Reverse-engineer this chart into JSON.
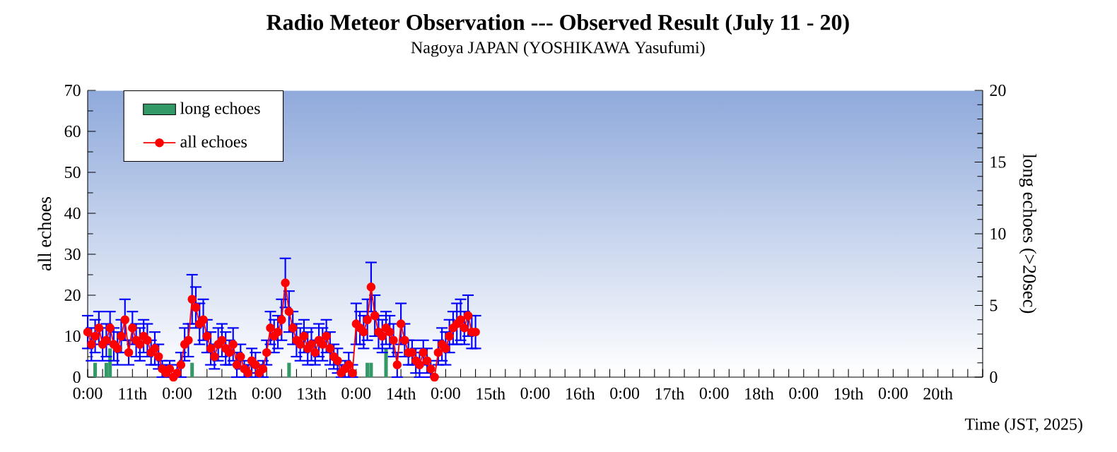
{
  "chart_data": {
    "type": "line",
    "title": "Radio Meteor Observation  ---  Observed Result (July 11 - 20)",
    "subtitle": "Nagoya JAPAN (YOSHIKAWA Yasufumi)",
    "xlabel": "Time (JST, 2025)",
    "ylabel": "all echoes",
    "y2label": "long echoes (>20sec)",
    "xlim": [
      "2025-07-11T00:00",
      "2025-07-21T00:00"
    ],
    "ylim": [
      0,
      70
    ],
    "y2lim": [
      0,
      20
    ],
    "yticks": [
      0,
      10,
      20,
      30,
      40,
      50,
      60,
      70
    ],
    "y2ticks": [
      0,
      5,
      10,
      15,
      20
    ],
    "xticks": [
      {
        "value": "2025-07-11T00:00",
        "label": "0:00"
      },
      {
        "value": "2025-07-11T04:00",
        "label": null
      },
      {
        "value": "2025-07-11T08:00",
        "label": null
      },
      {
        "value": "2025-07-11T12:00",
        "label": "11th"
      },
      {
        "value": "2025-07-11T16:00",
        "label": null
      },
      {
        "value": "2025-07-11T20:00",
        "label": null
      },
      {
        "value": "2025-07-12T00:00",
        "label": "0:00"
      },
      {
        "value": "2025-07-12T04:00",
        "label": null
      },
      {
        "value": "2025-07-12T08:00",
        "label": null
      },
      {
        "value": "2025-07-12T12:00",
        "label": "12th"
      },
      {
        "value": "2025-07-12T16:00",
        "label": null
      },
      {
        "value": "2025-07-12T20:00",
        "label": null
      },
      {
        "value": "2025-07-13T00:00",
        "label": "0:00"
      },
      {
        "value": "2025-07-13T04:00",
        "label": null
      },
      {
        "value": "2025-07-13T08:00",
        "label": null
      },
      {
        "value": "2025-07-13T12:00",
        "label": "13th"
      },
      {
        "value": "2025-07-13T16:00",
        "label": null
      },
      {
        "value": "2025-07-13T20:00",
        "label": null
      },
      {
        "value": "2025-07-14T00:00",
        "label": "0:00"
      },
      {
        "value": "2025-07-14T04:00",
        "label": null
      },
      {
        "value": "2025-07-14T08:00",
        "label": null
      },
      {
        "value": "2025-07-14T12:00",
        "label": "14th"
      },
      {
        "value": "2025-07-14T16:00",
        "label": null
      },
      {
        "value": "2025-07-14T20:00",
        "label": null
      },
      {
        "value": "2025-07-15T00:00",
        "label": "0:00"
      },
      {
        "value": "2025-07-15T04:00",
        "label": null
      },
      {
        "value": "2025-07-15T08:00",
        "label": null
      },
      {
        "value": "2025-07-15T12:00",
        "label": "15th"
      },
      {
        "value": "2025-07-15T16:00",
        "label": null
      },
      {
        "value": "2025-07-15T20:00",
        "label": null
      },
      {
        "value": "2025-07-16T00:00",
        "label": "0:00"
      },
      {
        "value": "2025-07-16T04:00",
        "label": null
      },
      {
        "value": "2025-07-16T08:00",
        "label": null
      },
      {
        "value": "2025-07-16T12:00",
        "label": "16th"
      },
      {
        "value": "2025-07-16T16:00",
        "label": null
      },
      {
        "value": "2025-07-16T20:00",
        "label": null
      },
      {
        "value": "2025-07-17T00:00",
        "label": "0:00"
      },
      {
        "value": "2025-07-17T04:00",
        "label": null
      },
      {
        "value": "2025-07-17T08:00",
        "label": null
      },
      {
        "value": "2025-07-17T12:00",
        "label": "17th"
      },
      {
        "value": "2025-07-17T16:00",
        "label": null
      },
      {
        "value": "2025-07-17T20:00",
        "label": null
      },
      {
        "value": "2025-07-18T00:00",
        "label": "0:00"
      },
      {
        "value": "2025-07-18T04:00",
        "label": null
      },
      {
        "value": "2025-07-18T08:00",
        "label": null
      },
      {
        "value": "2025-07-18T12:00",
        "label": "18th"
      },
      {
        "value": "2025-07-18T16:00",
        "label": null
      },
      {
        "value": "2025-07-18T20:00",
        "label": null
      },
      {
        "value": "2025-07-19T00:00",
        "label": "0:00"
      },
      {
        "value": "2025-07-19T04:00",
        "label": null
      },
      {
        "value": "2025-07-19T08:00",
        "label": null
      },
      {
        "value": "2025-07-19T12:00",
        "label": "19th"
      },
      {
        "value": "2025-07-19T16:00",
        "label": null
      },
      {
        "value": "2025-07-19T20:00",
        "label": null
      },
      {
        "value": "2025-07-20T00:00",
        "label": "0:00"
      },
      {
        "value": "2025-07-20T04:00",
        "label": null
      },
      {
        "value": "2025-07-20T08:00",
        "label": null
      },
      {
        "value": "2025-07-20T12:00",
        "label": "20th"
      },
      {
        "value": "2025-07-20T16:00",
        "label": null
      },
      {
        "value": "2025-07-20T20:00",
        "label": null
      },
      {
        "value": "2025-07-21T00:00",
        "label": null
      }
    ],
    "legend": "top left",
    "marker": "circle",
    "x": [
      "2025-07-11T00:00",
      "2025-07-11T01:00",
      "2025-07-11T02:00",
      "2025-07-11T03:00",
      "2025-07-11T04:00",
      "2025-07-11T05:00",
      "2025-07-11T06:00",
      "2025-07-11T07:00",
      "2025-07-11T08:00",
      "2025-07-11T09:00",
      "2025-07-11T10:00",
      "2025-07-11T11:00",
      "2025-07-11T12:00",
      "2025-07-11T13:00",
      "2025-07-11T14:00",
      "2025-07-11T15:00",
      "2025-07-11T16:00",
      "2025-07-11T17:00",
      "2025-07-11T18:00",
      "2025-07-11T19:00",
      "2025-07-11T20:00",
      "2025-07-11T21:00",
      "2025-07-11T22:00",
      "2025-07-11T23:00",
      "2025-07-12T00:00",
      "2025-07-12T01:00",
      "2025-07-12T02:00",
      "2025-07-12T03:00",
      "2025-07-12T04:00",
      "2025-07-12T05:00",
      "2025-07-12T06:00",
      "2025-07-12T07:00",
      "2025-07-12T08:00",
      "2025-07-12T09:00",
      "2025-07-12T10:00",
      "2025-07-12T11:00",
      "2025-07-12T12:00",
      "2025-07-12T13:00",
      "2025-07-12T14:00",
      "2025-07-12T15:00",
      "2025-07-12T16:00",
      "2025-07-12T17:00",
      "2025-07-12T18:00",
      "2025-07-12T19:00",
      "2025-07-12T20:00",
      "2025-07-12T21:00",
      "2025-07-12T22:00",
      "2025-07-12T23:00",
      "2025-07-13T00:00",
      "2025-07-13T01:00",
      "2025-07-13T02:00",
      "2025-07-13T03:00",
      "2025-07-13T04:00",
      "2025-07-13T05:00",
      "2025-07-13T06:00",
      "2025-07-13T07:00",
      "2025-07-13T08:00",
      "2025-07-13T09:00",
      "2025-07-13T10:00",
      "2025-07-13T11:00",
      "2025-07-13T12:00",
      "2025-07-13T13:00",
      "2025-07-13T14:00",
      "2025-07-13T15:00",
      "2025-07-13T16:00",
      "2025-07-13T17:00",
      "2025-07-13T18:00",
      "2025-07-13T19:00",
      "2025-07-13T20:00",
      "2025-07-13T21:00",
      "2025-07-13T22:00",
      "2025-07-13T23:00",
      "2025-07-14T00:00",
      "2025-07-14T01:00",
      "2025-07-14T02:00",
      "2025-07-14T03:00",
      "2025-07-14T04:00",
      "2025-07-14T05:00",
      "2025-07-14T06:00",
      "2025-07-14T07:00",
      "2025-07-14T08:00",
      "2025-07-14T09:00",
      "2025-07-14T10:00",
      "2025-07-14T11:00",
      "2025-07-14T12:00",
      "2025-07-14T13:00",
      "2025-07-14T14:00",
      "2025-07-14T15:00",
      "2025-07-14T16:00",
      "2025-07-14T17:00",
      "2025-07-14T18:00",
      "2025-07-14T19:00",
      "2025-07-14T20:00",
      "2025-07-14T21:00",
      "2025-07-14T22:00",
      "2025-07-14T23:00",
      "2025-07-15T00:00",
      "2025-07-15T01:00",
      "2025-07-15T02:00",
      "2025-07-15T03:00",
      "2025-07-15T04:00",
      "2025-07-15T05:00",
      "2025-07-15T06:00",
      "2025-07-15T07:00",
      "2025-07-15T08:00"
    ],
    "series": [
      {
        "name": "long echoes",
        "type": "bar",
        "axis": "y2",
        "color": "#339966",
        "values": [
          0,
          0,
          1,
          0,
          0,
          1,
          2,
          0,
          0,
          0,
          0,
          0,
          0,
          0,
          0,
          0,
          0,
          0,
          0,
          0,
          0,
          0,
          0,
          0,
          0,
          0,
          0,
          0,
          1,
          0,
          0,
          0,
          0,
          0,
          0,
          0,
          0,
          0,
          0,
          0,
          0,
          0,
          0,
          0,
          0,
          0,
          0,
          0,
          0,
          0,
          0,
          0,
          0,
          0,
          1,
          0,
          0,
          0,
          0,
          0,
          0,
          0,
          0,
          0,
          0,
          0,
          0,
          0,
          0,
          0,
          0,
          0,
          0,
          0,
          0,
          1,
          1,
          0,
          0,
          0,
          2,
          0,
          0,
          0,
          0,
          0,
          0,
          0,
          0,
          0,
          0,
          0,
          0,
          0,
          0,
          0,
          0,
          0,
          0,
          0,
          0,
          0,
          0,
          0,
          0
        ]
      },
      {
        "name": "all echoes",
        "color": "#ff0000",
        "values": [
          11,
          8,
          10,
          12,
          8,
          9,
          12,
          8,
          7,
          10,
          14,
          6,
          12,
          9,
          8,
          10,
          9,
          6,
          7,
          5,
          2,
          1,
          2,
          0,
          1,
          3,
          8,
          9,
          19,
          17,
          13,
          14,
          10,
          7,
          5,
          8,
          9,
          7,
          6,
          8,
          3,
          5,
          2,
          1,
          4,
          3,
          1,
          2,
          6,
          12,
          10,
          11,
          14,
          23,
          16,
          12,
          9,
          8,
          10,
          7,
          8,
          6,
          9,
          8,
          10,
          7,
          5,
          4,
          1,
          2,
          3,
          1,
          13,
          12,
          11,
          14,
          22,
          15,
          11,
          10,
          12,
          11,
          9,
          3,
          13,
          9,
          6,
          6,
          4,
          3,
          6,
          4,
          2,
          0,
          6,
          8,
          7,
          10,
          12,
          13,
          14,
          12,
          15,
          11,
          11
        ],
        "errors": [
          4,
          4,
          4,
          4,
          4,
          4,
          4,
          4,
          4,
          4,
          5,
          3,
          4,
          4,
          4,
          4,
          4,
          3,
          4,
          3,
          2,
          [
            0,
            3
          ],
          2,
          null,
          [
            0,
            3
          ],
          3,
          4,
          4,
          6,
          5,
          5,
          5,
          4,
          4,
          3,
          4,
          4,
          4,
          3,
          4,
          3,
          3,
          2,
          [
            0,
            3
          ],
          3,
          3,
          [
            0,
            3
          ],
          2,
          3,
          4,
          4,
          4,
          5,
          6,
          5,
          4,
          4,
          4,
          4,
          4,
          4,
          3,
          4,
          4,
          4,
          4,
          3,
          3,
          [
            0,
            3
          ],
          2,
          3,
          [
            0,
            3
          ],
          5,
          4,
          4,
          5,
          6,
          5,
          4,
          4,
          4,
          4,
          4,
          3,
          5,
          4,
          3,
          3,
          3,
          3,
          3,
          3,
          2,
          null,
          3,
          4,
          4,
          4,
          4,
          5,
          5,
          4,
          5,
          4,
          4
        ]
      }
    ]
  }
}
